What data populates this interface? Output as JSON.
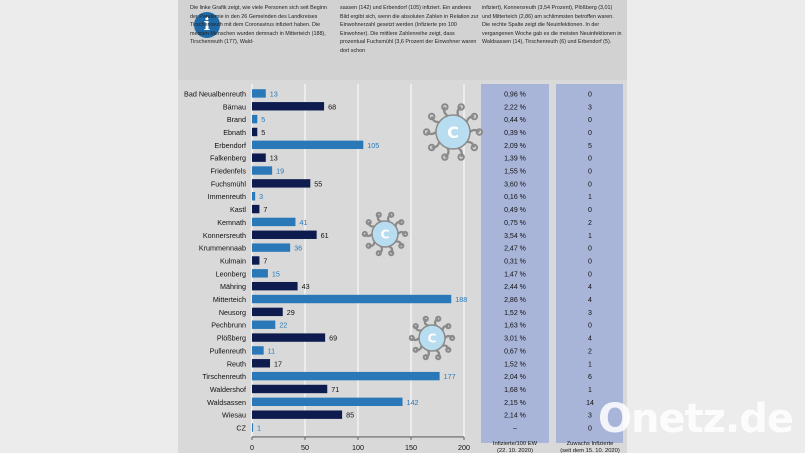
{
  "intro": {
    "col1": "Die linke Grafik zeigt, wie viele Personen sich seit Beginn der Pandemie in den 26 Gemeinden des Landkreises Tirschenreuth mit dem Coronavirus infiziert haben. Die meisten Menschen wurden demnach in Mitterteich (188), Tirschenreuth (177), Wald-",
    "col2": "sassen (142) und Erbendorf (105) infiziert. Ein anderes Bild ergibt sich, wenn die absoluten Zahlen in Relation zur Einwohnerzahl gesetzt werden (Infizierte pro 100 Einwohner). Die mittlere Zahlenreihe zeigt, dass prozentual Fuchsmühl (3,6 Prozent der Einwohner waren dort schon",
    "col3": "infiziert), Konnersreuth (3,54 Prozent), Plößberg (3,01) und Mitterteich (2,86) am schlimmsten betroffen waren. Die rechte Spalte zeigt die Neuinfektionen. In der vergangenen Woche gab es die meisten Neuinfektionen in Waldsassen (14), Tirschenreuth (6) und Erbendorf (5)."
  },
  "info_icon": "info-icon",
  "watermark": "Onetz.de",
  "colors": {
    "bar_dark": "#0e1b4f",
    "bar_light": "#2a78b8",
    "value_light_text": "#2a78b8",
    "column_bg": "#a9b4d9",
    "virus_fill": "#b8ddf0",
    "virus_stroke": "#8a8a8a"
  },
  "chart_data": {
    "type": "bar",
    "orientation": "horizontal",
    "categories": [
      "Bad Neualbenreuth",
      "Bärnau",
      "Brand",
      "Ebnath",
      "Erbendorf",
      "Falkenberg",
      "Friedenfels",
      "Fuchsmühl",
      "Immenreuth",
      "Kastl",
      "Kemnath",
      "Konnersreuth",
      "Krummennaab",
      "Kulmain",
      "Leonberg",
      "Mähring",
      "Mitterteich",
      "Neusorg",
      "Pechbrunn",
      "Plößberg",
      "Pullenreuth",
      "Reuth",
      "Tirschenreuth",
      "Waldershof",
      "Waldsassen",
      "Wiesau",
      "CZ"
    ],
    "values": [
      13,
      68,
      5,
      5,
      105,
      13,
      19,
      55,
      3,
      7,
      41,
      61,
      36,
      7,
      15,
      43,
      188,
      29,
      22,
      69,
      11,
      17,
      177,
      71,
      142,
      85,
      1
    ],
    "bar_shade": [
      "light",
      "dark",
      "light",
      "dark",
      "light",
      "dark",
      "light",
      "dark",
      "light",
      "dark",
      "light",
      "dark",
      "light",
      "dark",
      "light",
      "dark",
      "light",
      "dark",
      "light",
      "dark",
      "light",
      "dark",
      "light",
      "dark",
      "light",
      "dark",
      "light"
    ],
    "percent_infected": [
      "0,96 %",
      "2,22 %",
      "0,44 %",
      "0,39 %",
      "2,09 %",
      "1,39 %",
      "1,55 %",
      "3,60 %",
      "0,16 %",
      "0,49 %",
      "0,75 %",
      "3,54 %",
      "2,47 %",
      "0,31 %",
      "1,47 %",
      "2,44 %",
      "2,86 %",
      "1,52 %",
      "1,63 %",
      "3,01 %",
      "0,67 %",
      "1,52 %",
      "2,04 %",
      "1,68 %",
      "2,15 %",
      "2,14 %",
      "–"
    ],
    "new_infections": [
      "0",
      "3",
      "0",
      "0",
      "5",
      "0",
      "0",
      "0",
      "1",
      "0",
      "2",
      "1",
      "0",
      "0",
      "0",
      "4",
      "4",
      "3",
      "0",
      "4",
      "2",
      "1",
      "6",
      "1",
      "14",
      "3",
      "0"
    ],
    "xlim": [
      0,
      200
    ],
    "xticks": [
      0,
      50,
      100,
      150,
      200
    ],
    "column_labels": {
      "percent": "Infizierte/100 EW\n(22. 10. 2020)",
      "new": "Zuwachs Infizierte\n(seit dem 15. 10. 2020)"
    }
  }
}
